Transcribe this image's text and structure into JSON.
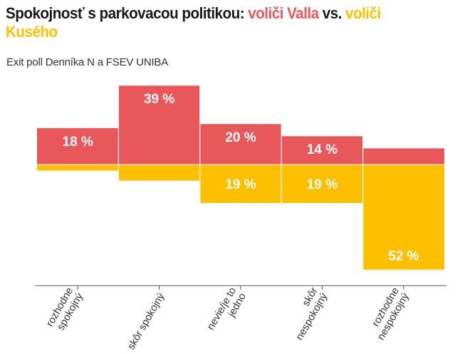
{
  "title": {
    "prefix": "Spokojnosť s parkovacou politikou: ",
    "group_a": "voliči Valla",
    "vs": " vs. ",
    "group_b": "voliči Kusého"
  },
  "subtitle": "Exit poll Denníka N a FSEV UNIBA",
  "colors": {
    "group_a": "#e8585a",
    "group_b": "#fcc000",
    "axis": "#555555",
    "divider": "#ffffff"
  },
  "chart_data": {
    "type": "bar",
    "orientation": "diverging",
    "categories": [
      [
        "rozhodne",
        "spokojný"
      ],
      [
        "skôr spokojný"
      ],
      [
        "nevie/je to",
        "jedno"
      ],
      [
        "skôr",
        "nespokojný"
      ],
      [
        "rozhodne",
        "nespokojný"
      ]
    ],
    "series": [
      {
        "name": "voliči Valla",
        "direction": "up",
        "values": [
          18,
          39,
          20,
          14,
          8
        ],
        "labels": [
          "18 %",
          "39 %",
          "20 %",
          "14 %",
          ""
        ]
      },
      {
        "name": "voliči Kusého",
        "direction": "down",
        "values": [
          3,
          8,
          19,
          19,
          52
        ],
        "labels": [
          "",
          "",
          "19 %",
          "19 %",
          "52 %"
        ]
      }
    ],
    "ylim": [
      -60,
      45
    ],
    "grid": false,
    "legend": "in-title"
  }
}
